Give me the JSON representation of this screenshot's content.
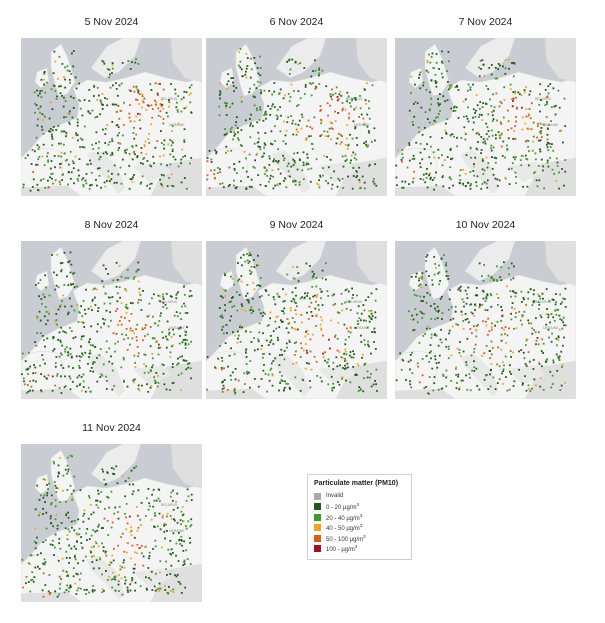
{
  "panels": [
    {
      "date": "5 Nov 2024",
      "hotspot": "east"
    },
    {
      "date": "6 Nov 2024",
      "hotspot": "east"
    },
    {
      "date": "7 Nov 2024",
      "hotspot": "east"
    },
    {
      "date": "8 Nov 2024",
      "hotspot": "central"
    },
    {
      "date": "9 Nov 2024",
      "hotspot": "central"
    },
    {
      "date": "10 Nov 2024",
      "hotspot": "central"
    },
    {
      "date": "11 Nov 2024",
      "hotspot": "central"
    }
  ],
  "map_labels": [
    "UKRAINE",
    "BELARUS"
  ],
  "legend": {
    "title": "Particulate matter (PM10)",
    "items": [
      {
        "label": "Invalid",
        "unit": "",
        "color": "#a9a9a9"
      },
      {
        "label": "0 - 20 µg/m",
        "unit": "3",
        "color": "#1f5a16"
      },
      {
        "label": "20 - 40 µg/m",
        "unit": "3",
        "color": "#3c9b2c"
      },
      {
        "label": "40 - 50 µg/m",
        "unit": "3",
        "color": "#f2a516"
      },
      {
        "label": "50 - 100 µg/m",
        "unit": "3",
        "color": "#e1581b"
      },
      {
        "label": "100 - µg/m",
        "unit": "3",
        "color": "#a50f15"
      }
    ]
  },
  "colors": {
    "sea": "#c9cdd3",
    "land": "#f4f4f4",
    "outside_land": "#dfdfdf"
  }
}
